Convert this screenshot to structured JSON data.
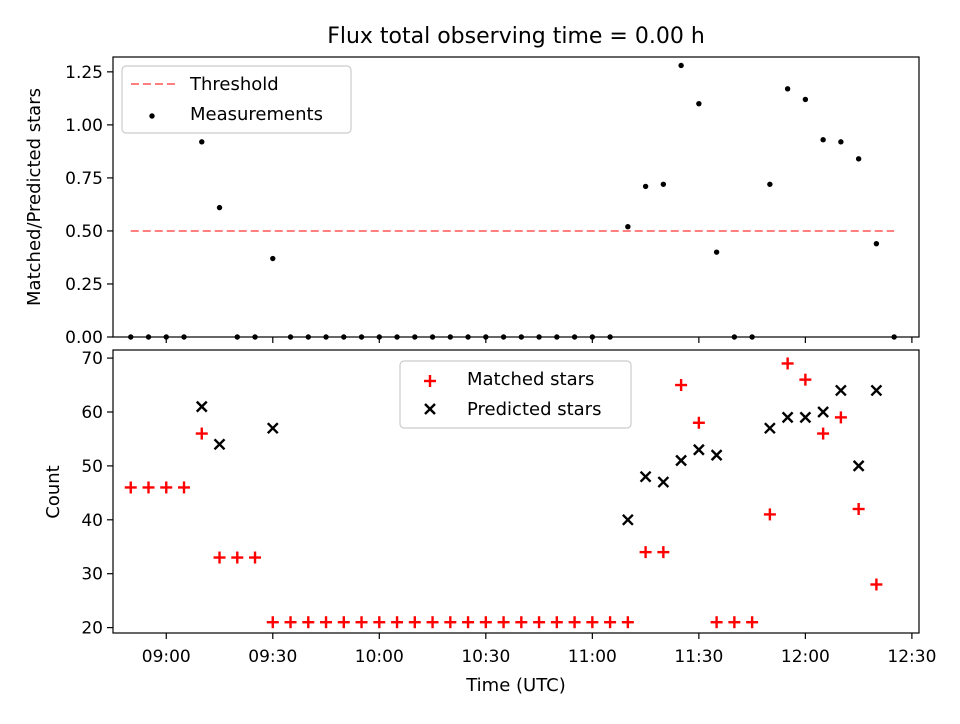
{
  "chart_data": [
    {
      "type": "scatter",
      "title": "Flux total observing time = 0.00 h",
      "xlabel": "",
      "ylabel": "Matched/Predicted stars",
      "xlim": [
        "08:45",
        "12:32"
      ],
      "ylim": [
        0,
        1.32
      ],
      "yticks": [
        "0.00",
        "0.25",
        "0.50",
        "0.75",
        "1.00",
        "1.25"
      ],
      "ytick_values": [
        0,
        0.25,
        0.5,
        0.75,
        1.0,
        1.25
      ],
      "xticks_shown": false,
      "legend_position": "top-left",
      "threshold": {
        "name": "Threshold",
        "value": 0.5,
        "x_start": "08:50",
        "x_end": "12:25",
        "color": "#ff7f7f",
        "style": "dashed"
      },
      "series": [
        {
          "name": "Measurements",
          "marker": "dot",
          "color": "#000000",
          "x": [
            "08:50",
            "08:55",
            "09:00",
            "09:05",
            "09:10",
            "09:15",
            "09:20",
            "09:25",
            "09:30",
            "09:35",
            "09:40",
            "09:45",
            "09:50",
            "09:55",
            "10:00",
            "10:05",
            "10:10",
            "10:15",
            "10:20",
            "10:25",
            "10:30",
            "10:35",
            "10:40",
            "10:45",
            "10:50",
            "10:55",
            "11:00",
            "11:05",
            "11:10",
            "11:15",
            "11:20",
            "11:25",
            "11:30",
            "11:35",
            "11:40",
            "11:45",
            "11:50",
            "11:55",
            "12:00",
            "12:05",
            "12:10",
            "12:15",
            "12:20",
            "12:25"
          ],
          "y": [
            0,
            0,
            0,
            0,
            0.92,
            0.61,
            0,
            0,
            0.37,
            0,
            0,
            0,
            0,
            0,
            0,
            0,
            0,
            0,
            0,
            0,
            0,
            0,
            0,
            0,
            0,
            0,
            0,
            0,
            0.52,
            0.71,
            0.72,
            1.28,
            1.1,
            0.4,
            0,
            0,
            0.72,
            1.17,
            1.12,
            0.93,
            0.92,
            0.84,
            0.44,
            0
          ]
        }
      ]
    },
    {
      "type": "scatter",
      "title": "",
      "xlabel": "Time (UTC)",
      "ylabel": "Count",
      "xlim": [
        "08:45",
        "12:32"
      ],
      "ylim": [
        19,
        71.5
      ],
      "yticks": [
        "20",
        "30",
        "40",
        "50",
        "60",
        "70"
      ],
      "ytick_values": [
        20,
        30,
        40,
        50,
        60,
        70
      ],
      "xticks": [
        "09:00",
        "09:30",
        "10:00",
        "10:30",
        "11:00",
        "11:30",
        "12:00",
        "12:30"
      ],
      "legend_position": "top-center",
      "series": [
        {
          "name": "Matched stars",
          "marker": "plus",
          "color": "#ff0000",
          "x": [
            "08:50",
            "08:55",
            "09:00",
            "09:05",
            "09:10",
            "09:15",
            "09:20",
            "09:25",
            "09:30",
            "09:35",
            "09:40",
            "09:45",
            "09:50",
            "09:55",
            "10:00",
            "10:05",
            "10:10",
            "10:15",
            "10:20",
            "10:25",
            "10:30",
            "10:35",
            "10:40",
            "10:45",
            "10:50",
            "10:55",
            "11:00",
            "11:05",
            "11:10",
            "11:15",
            "11:20",
            "11:25",
            "11:30",
            "11:35",
            "11:40",
            "11:45",
            "11:50",
            "11:55",
            "12:00",
            "12:05",
            "12:10",
            "12:15",
            "12:20",
            "12:25"
          ],
          "y": [
            46,
            46,
            46,
            46,
            56,
            33,
            33,
            33,
            21,
            21,
            21,
            21,
            21,
            21,
            21,
            21,
            21,
            21,
            21,
            21,
            21,
            21,
            21,
            21,
            21,
            21,
            21,
            21,
            21,
            34,
            34,
            65,
            58,
            21,
            21,
            21,
            41,
            69,
            66,
            56,
            59,
            42,
            28,
            null
          ]
        },
        {
          "name": "Predicted stars",
          "marker": "x",
          "color": "#000000",
          "x": [
            "09:10",
            "09:15",
            "09:30",
            "11:10",
            "11:15",
            "11:20",
            "11:25",
            "11:30",
            "11:35",
            "11:50",
            "11:55",
            "12:00",
            "12:05",
            "12:10",
            "12:15",
            "12:20"
          ],
          "y": [
            61,
            54,
            57,
            40,
            48,
            47,
            51,
            53,
            52,
            57,
            59,
            59,
            60,
            64,
            50,
            64
          ]
        }
      ]
    }
  ]
}
